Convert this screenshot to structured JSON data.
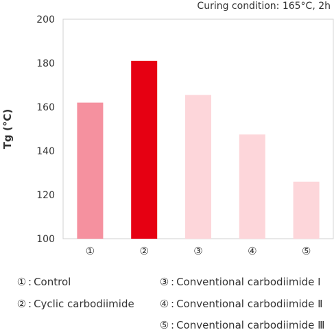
{
  "chart_data": {
    "type": "bar",
    "title": "Curing condition: 165°C, 2h",
    "xlabel": "",
    "ylabel": "Tg (°C)",
    "categories": [
      "①",
      "②",
      "③",
      "④",
      "⑤"
    ],
    "values": [
      162,
      181,
      165.5,
      147.5,
      126
    ],
    "colors": [
      "#f5919f",
      "#e60012",
      "#fdd6da",
      "#fdd6da",
      "#fdd6da"
    ],
    "ylim": [
      100,
      200
    ],
    "yticks": [
      100,
      120,
      140,
      160,
      180,
      200
    ],
    "grid": false
  },
  "legend": [
    {
      "symbol": "①",
      "sep": ":",
      "label": "Control"
    },
    {
      "symbol": "②",
      "sep": ":",
      "label": "Cyclic carbodiimide"
    },
    {
      "symbol": "③",
      "sep": ":",
      "label": "Conventional carbodiimide Ⅰ"
    },
    {
      "symbol": "④",
      "sep": ":",
      "label": "Conventional carbodiimide Ⅱ"
    },
    {
      "symbol": "⑤",
      "sep": ":",
      "label": "Conventional carbodiimide Ⅲ"
    }
  ]
}
